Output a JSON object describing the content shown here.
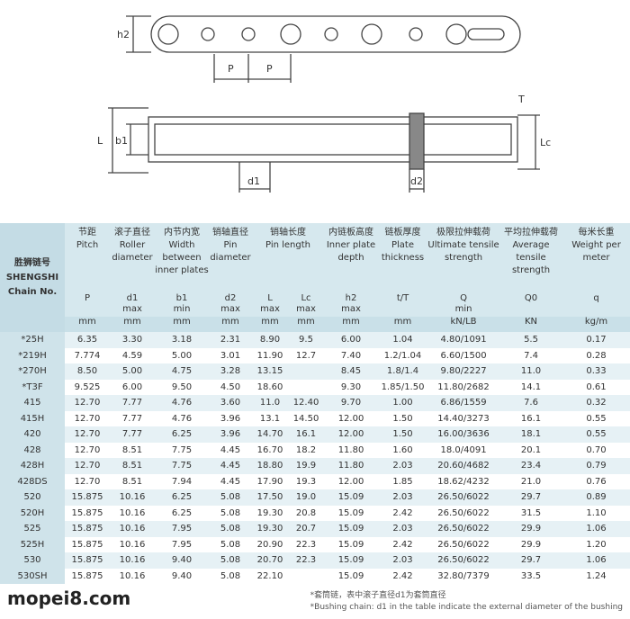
{
  "diagram": {
    "labels": {
      "h2": "h2",
      "p1": "P",
      "p2": "P",
      "t": "T",
      "l": "L",
      "b1": "b1",
      "lc": "Lc",
      "d1": "d1",
      "d2": "d2"
    }
  },
  "table": {
    "chain_cn": "胜狮链号",
    "chain_en": "SHENGSHI Chain No.",
    "groups": [
      {
        "cn": "节距",
        "en": "Pitch"
      },
      {
        "cn": "滚子直径",
        "en": "Roller diameter"
      },
      {
        "cn": "内节内宽",
        "en": "Width between inner plates"
      },
      {
        "cn": "销轴直径",
        "en": "Pin diameter"
      },
      {
        "cn": "销轴长度",
        "en": "Pin length"
      },
      {
        "cn": "内链板高度",
        "en": "Inner plate depth"
      },
      {
        "cn": "链板厚度",
        "en": "Plate thickness"
      },
      {
        "cn": "极限拉伸载荷",
        "en": "Ultimate tensile strength"
      },
      {
        "cn": "平均拉伸载荷",
        "en": "Average tensile strength"
      },
      {
        "cn": "每米长重",
        "en": "Weight per meter"
      }
    ],
    "symbols": [
      "P",
      "d1",
      "b1",
      "d2",
      "L",
      "Lc",
      "h2",
      "t/T",
      "Q",
      "Q0",
      "q"
    ],
    "limits": [
      null,
      "max",
      "min",
      "max",
      "max",
      "max",
      "max",
      null,
      "min",
      null,
      null
    ],
    "units": [
      "mm",
      "mm",
      "mm",
      "mm",
      "mm",
      "mm",
      "mm",
      "mm",
      "kN/LB",
      "KN",
      "kg/m"
    ],
    "rows": [
      [
        "*25H",
        "6.35",
        "3.30",
        "3.18",
        "2.31",
        "8.90",
        "9.5",
        "6.00",
        "1.04",
        "4.80/1091",
        "5.5",
        "0.17"
      ],
      [
        "*219H",
        "7.774",
        "4.59",
        "5.00",
        "3.01",
        "11.90",
        "12.7",
        "7.40",
        "1.2/1.04",
        "6.60/1500",
        "7.4",
        "0.28"
      ],
      [
        "*270H",
        "8.50",
        "5.00",
        "4.75",
        "3.28",
        "13.15",
        null,
        "8.45",
        "1.8/1.4",
        "9.80/2227",
        "11.0",
        "0.33"
      ],
      [
        "*T3F",
        "9.525",
        "6.00",
        "9.50",
        "4.50",
        "18.60",
        null,
        "9.30",
        "1.85/1.50",
        "11.80/2682",
        "14.1",
        "0.61"
      ],
      [
        "415",
        "12.70",
        "7.77",
        "4.76",
        "3.60",
        "11.0",
        "12.40",
        "9.70",
        "1.00",
        "6.86/1559",
        "7.6",
        "0.32"
      ],
      [
        "415H",
        "12.70",
        "7.77",
        "4.76",
        "3.96",
        "13.1",
        "14.50",
        "12.00",
        "1.50",
        "14.40/3273",
        "16.1",
        "0.55"
      ],
      [
        "420",
        "12.70",
        "7.77",
        "6.25",
        "3.96",
        "14.70",
        "16.1",
        "12.00",
        "1.50",
        "16.00/3636",
        "18.1",
        "0.55"
      ],
      [
        "428",
        "12.70",
        "8.51",
        "7.75",
        "4.45",
        "16.70",
        "18.2",
        "11.80",
        "1.60",
        "18.0/4091",
        "20.1",
        "0.70"
      ],
      [
        "428H",
        "12.70",
        "8.51",
        "7.75",
        "4.45",
        "18.80",
        "19.9",
        "11.80",
        "2.03",
        "20.60/4682",
        "23.4",
        "0.79"
      ],
      [
        "428DS",
        "12.70",
        "8.51",
        "7.94",
        "4.45",
        "17.90",
        "19.3",
        "12.00",
        "1.85",
        "18.62/4232",
        "21.0",
        "0.76"
      ],
      [
        "520",
        "15.875",
        "10.16",
        "6.25",
        "5.08",
        "17.50",
        "19.0",
        "15.09",
        "2.03",
        "26.50/6022",
        "29.7",
        "0.89"
      ],
      [
        "520H",
        "15.875",
        "10.16",
        "6.25",
        "5.08",
        "19.30",
        "20.8",
        "15.09",
        "2.42",
        "26.50/6022",
        "31.5",
        "1.10"
      ],
      [
        "525",
        "15.875",
        "10.16",
        "7.95",
        "5.08",
        "19.30",
        "20.7",
        "15.09",
        "2.03",
        "26.50/6022",
        "29.9",
        "1.06"
      ],
      [
        "525H",
        "15.875",
        "10.16",
        "7.95",
        "5.08",
        "20.90",
        "22.3",
        "15.09",
        "2.42",
        "26.50/6022",
        "29.9",
        "1.20"
      ],
      [
        "530",
        "15.875",
        "10.16",
        "9.40",
        "5.08",
        "20.70",
        "22.3",
        "15.09",
        "2.03",
        "26.50/6022",
        "29.7",
        "1.06"
      ],
      [
        "530SH",
        "15.875",
        "10.16",
        "9.40",
        "5.08",
        "22.10",
        null,
        "15.09",
        "2.42",
        "32.80/7379",
        "33.5",
        "1.24"
      ]
    ]
  },
  "footnote": {
    "cn": "*套筒链，表中滚子直径d1为套筒直径",
    "en": "*Bushing chain: d1 in the table indicate the external diameter of the bushing"
  },
  "watermark": "mopei8.com"
}
